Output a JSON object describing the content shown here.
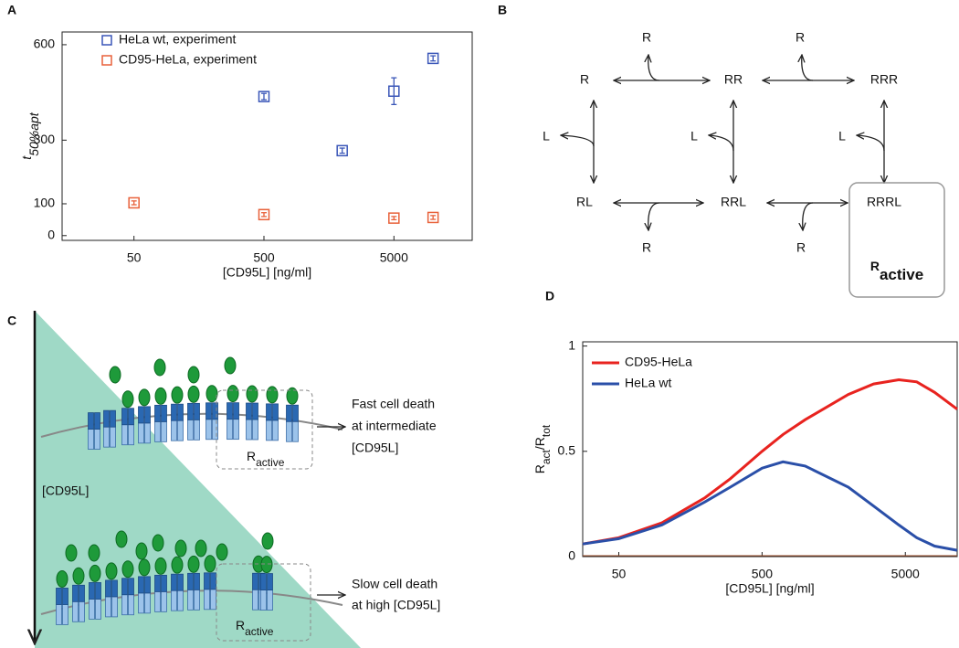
{
  "panel_labels": [
    "A",
    "B",
    "C",
    "D"
  ],
  "chart_data": [
    {
      "type": "scatter",
      "xscale": "log",
      "xlim": [
        14,
        20000
      ],
      "xticks": [
        50,
        500,
        5000
      ],
      "ylim": [
        -15,
        640
      ],
      "yticks": [
        0,
        100,
        300,
        600
      ],
      "xlabel": "[CD95L] [ng/ml]",
      "ylabel": {
        "main": "t",
        "sub": "50%apt"
      },
      "legend": "upper left",
      "series": [
        {
          "name": "HeLa wt, experiment",
          "color": "#3a56b8",
          "x": [
            500,
            2000,
            5000,
            10000
          ],
          "values": [
            437,
            267,
            454,
            557
          ],
          "errors": [
            10,
            8,
            42,
            8
          ]
        },
        {
          "name": "CD95-HeLa, experiment",
          "color": "#e8613a",
          "x": [
            50,
            500,
            5000,
            10000
          ],
          "values": [
            103,
            66,
            55,
            57
          ],
          "errors": [
            6,
            6,
            5,
            6
          ]
        }
      ]
    },
    {
      "type": "line",
      "xscale": "log",
      "xlim": [
        28,
        11500
      ],
      "xticks": [
        50,
        500,
        5000
      ],
      "ylim": [
        0,
        1.02
      ],
      "yticks": [
        0,
        0.5,
        1
      ],
      "xlabel": "[CD95L] [ng/ml]",
      "ylabel": [
        "R",
        "act",
        "/R",
        "tot"
      ],
      "legend": "upper left",
      "x": [
        28,
        50,
        100,
        200,
        300,
        500,
        700,
        1000,
        2000,
        3000,
        4500,
        6000,
        8000,
        11500
      ],
      "series": [
        {
          "name": "CD95-HeLa",
          "color": "#e8231f",
          "values": [
            0.06,
            0.09,
            0.16,
            0.28,
            0.37,
            0.5,
            0.58,
            0.65,
            0.77,
            0.82,
            0.84,
            0.83,
            0.78,
            0.7
          ]
        },
        {
          "name": "HeLa wt",
          "color": "#2a4fa8",
          "values": [
            0.06,
            0.085,
            0.15,
            0.26,
            0.33,
            0.42,
            0.45,
            0.43,
            0.33,
            0.24,
            0.15,
            0.09,
            0.05,
            0.03
          ]
        }
      ]
    }
  ],
  "diagram": {
    "nodes": [
      {
        "label": "R"
      },
      {
        "label": "RR"
      },
      {
        "label": "RRR"
      },
      {
        "label": "RL"
      },
      {
        "label": "RRL"
      },
      {
        "label": "RRRL"
      }
    ],
    "side_labels": [
      "R",
      "R",
      "L",
      "L",
      "L",
      "R",
      "R"
    ],
    "active_box": {
      "main": "R",
      "sub": "active"
    }
  },
  "illustration": {
    "axis_label": "[CD95L]",
    "annotations": [
      {
        "lines": [
          "Fast cell death",
          "at intermediate",
          "[CD95L]"
        ]
      },
      {
        "lines": [
          "Slow cell death",
          "at high [CD95L]"
        ]
      }
    ],
    "active_labels": [
      {
        "main": "R",
        "sub": "active"
      },
      {
        "main": "R",
        "sub": "active"
      }
    ]
  }
}
